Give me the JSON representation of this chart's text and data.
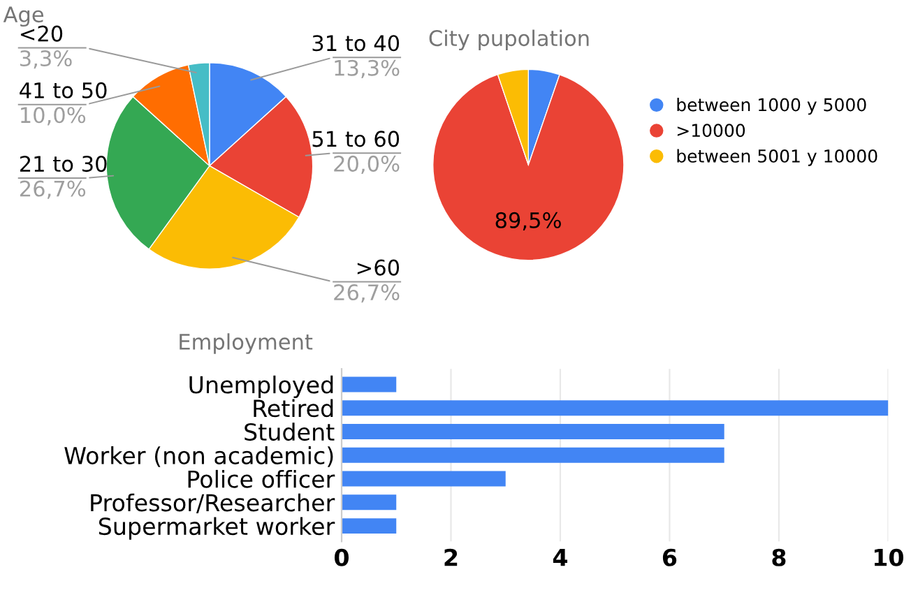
{
  "chart_data": [
    {
      "type": "pie",
      "title": "Age",
      "categories": [
        "31 to 40",
        "51 to 60",
        ">60",
        "21 to 30",
        "41 to 50",
        "<20"
      ],
      "values": [
        13.3,
        20.0,
        26.7,
        26.7,
        10.0,
        3.3
      ],
      "colors": [
        "#4285f4",
        "#ea4335",
        "#fbbc04",
        "#34a853",
        "#ff6d01",
        "#46bdc6"
      ],
      "value_labels": [
        "13,3%",
        "20,0%",
        "26,7%",
        "26,7%",
        "10,0%",
        "3,3%"
      ],
      "legend": false
    },
    {
      "type": "pie",
      "title": "City pupolation",
      "categories": [
        "between 1000 y 5000",
        ">10000",
        "between 5001 y 10000"
      ],
      "values": [
        5.3,
        89.5,
        5.2
      ],
      "colors": [
        "#4285f4",
        "#ea4335",
        "#fbbc04"
      ],
      "value_labels": [
        null,
        "89,5%",
        null
      ],
      "legend": "right"
    },
    {
      "type": "bar",
      "orientation": "horizontal",
      "title": "Employment",
      "categories": [
        "Unemployed",
        "Retired",
        "Student",
        "Worker (non academic)",
        "Police officer",
        "Professor/Researcher",
        "Supermarket worker"
      ],
      "values": [
        1,
        10,
        7,
        7,
        3,
        1,
        1
      ],
      "color": "#4285f4",
      "xlim": [
        0,
        10
      ],
      "xticks": [
        0,
        2,
        4,
        6,
        8,
        10
      ],
      "grid": "x"
    }
  ]
}
